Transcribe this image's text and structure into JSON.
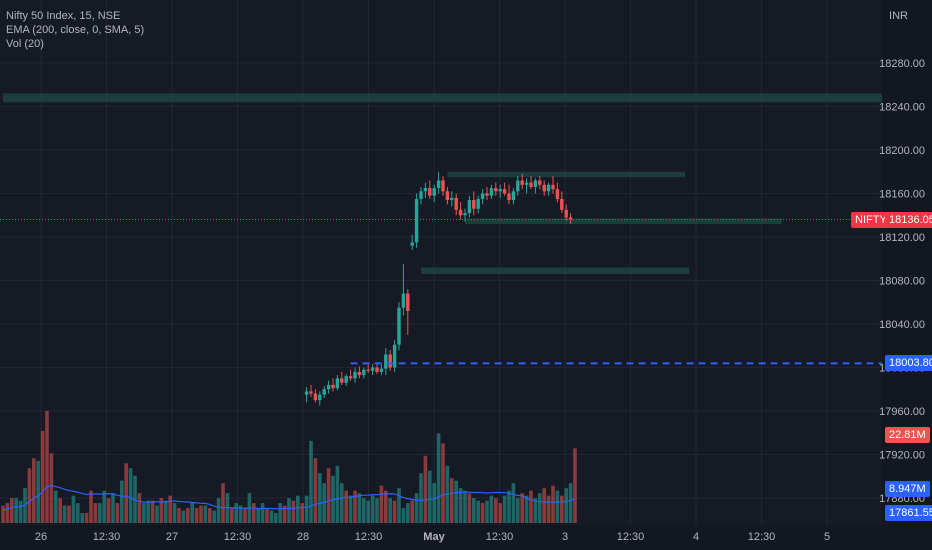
{
  "legend": {
    "line1": "Nifty 50 Index, 15, NSE",
    "line2": "EMA (200, close, 0, SMA, 5)",
    "line3": "Vol (20)"
  },
  "currency": "INR",
  "colors": {
    "background": "#161a25",
    "up": "#26a69a",
    "down": "#ef5350",
    "zone": "#1f4a43",
    "price_line": "#f23645",
    "blue_line": "#2962ff",
    "vol_ma": "#2962ff"
  },
  "tags": {
    "symbol_label": "NIFTY",
    "last_price": "18136.05",
    "level_price": "18003.80",
    "volume_last": "22.81M",
    "volume_ma": "8.947M",
    "bottom_price": "17861.55"
  },
  "chart_data": {
    "type": "candlestick",
    "title": "Nifty 50 Index, 15, NSE",
    "y_axis": {
      "ticks": [
        "18280.00",
        "18240.00",
        "18200.00",
        "18160.00",
        "18120.00",
        "18080.00",
        "18040.00",
        "18000.00",
        "17960.00",
        "17920.00",
        "17880.00"
      ],
      "range": [
        17850,
        18310
      ]
    },
    "x_axis": {
      "ticks": [
        "26",
        "12:30",
        "27",
        "12:30",
        "28",
        "12:30",
        "May",
        "12:30",
        "3",
        "12:30",
        "4",
        "12:30",
        "5"
      ]
    },
    "last_price": 18136.05,
    "horizontal_level": 18003.8,
    "zones": [
      {
        "low": 18244,
        "high": 18252,
        "from_index": 0,
        "to_index": 200
      },
      {
        "low": 18175,
        "high": 18180,
        "from_index": 101,
        "to_index": 155
      },
      {
        "low": 18132,
        "high": 18137,
        "from_index": 105,
        "to_index": 177
      },
      {
        "low": 18086,
        "high": 18092,
        "from_index": 95,
        "to_index": 156
      }
    ],
    "candles_start_index": 69,
    "candles": [
      [
        17975,
        17982,
        17968,
        17978
      ],
      [
        17978,
        17984,
        17973,
        17976
      ],
      [
        17976,
        17980,
        17968,
        17970
      ],
      [
        17970,
        17978,
        17965,
        17975
      ],
      [
        17975,
        17983,
        17972,
        17980
      ],
      [
        17980,
        17988,
        17976,
        17984
      ],
      [
        17984,
        17990,
        17978,
        17981
      ],
      [
        17981,
        17993,
        17979,
        17990
      ],
      [
        17990,
        17996,
        17984,
        17986
      ],
      [
        17986,
        17994,
        17983,
        17992
      ],
      [
        17992,
        17998,
        17988,
        17990
      ],
      [
        17990,
        18000,
        17986,
        17996
      ],
      [
        17996,
        18001,
        17990,
        17993
      ],
      [
        17993,
        18000,
        17990,
        17998
      ],
      [
        17998,
        18004,
        17995,
        17997
      ],
      [
        17997,
        18003,
        17993,
        18000
      ],
      [
        18000,
        18005,
        17994,
        17996
      ],
      [
        17996,
        18003,
        17993,
        17999
      ],
      [
        17999,
        18018,
        17993,
        18012
      ],
      [
        18012,
        18016,
        17997,
        18000
      ],
      [
        18000,
        18025,
        17996,
        18021
      ],
      [
        18021,
        18060,
        18016,
        18055
      ],
      [
        18055,
        18095,
        18048,
        18068
      ],
      [
        18068,
        18072,
        18030,
        18052
      ],
      [
        18112,
        18122,
        18108,
        18115
      ],
      [
        18115,
        18160,
        18110,
        18155
      ],
      [
        18155,
        18166,
        18150,
        18162
      ],
      [
        18162,
        18170,
        18156,
        18165
      ],
      [
        18165,
        18172,
        18155,
        18158
      ],
      [
        18158,
        18168,
        18152,
        18165
      ],
      [
        18165,
        18180,
        18160,
        18172
      ],
      [
        18172,
        18176,
        18158,
        18162
      ],
      [
        18162,
        18166,
        18150,
        18154
      ],
      [
        18154,
        18162,
        18148,
        18156
      ],
      [
        18156,
        18160,
        18140,
        18145
      ],
      [
        18145,
        18152,
        18136,
        18140
      ],
      [
        18140,
        18146,
        18134,
        18142
      ],
      [
        18142,
        18158,
        18138,
        18154
      ],
      [
        18154,
        18162,
        18140,
        18146
      ],
      [
        18146,
        18158,
        18142,
        18155
      ],
      [
        18155,
        18164,
        18150,
        18160
      ],
      [
        18160,
        18166,
        18154,
        18158
      ],
      [
        18158,
        18168,
        18155,
        18165
      ],
      [
        18165,
        18170,
        18158,
        18162
      ],
      [
        18162,
        18168,
        18156,
        18164
      ],
      [
        18164,
        18170,
        18158,
        18160
      ],
      [
        18160,
        18168,
        18150,
        18154
      ],
      [
        18154,
        18165,
        18150,
        18162
      ],
      [
        18162,
        18176,
        18158,
        18172
      ],
      [
        18172,
        18178,
        18164,
        18168
      ],
      [
        18168,
        18174,
        18160,
        18170
      ],
      [
        18170,
        18176,
        18164,
        18166
      ],
      [
        18166,
        18174,
        18160,
        18172
      ],
      [
        18172,
        18176,
        18164,
        18168
      ],
      [
        18168,
        18172,
        18158,
        18162
      ],
      [
        18162,
        18170,
        18158,
        18168
      ],
      [
        18168,
        18176,
        18160,
        18164
      ],
      [
        18164,
        18170,
        18152,
        18155
      ],
      [
        18155,
        18162,
        18142,
        18145
      ],
      [
        18145,
        18150,
        18135,
        18138
      ],
      [
        18138,
        18142,
        18132,
        18136
      ]
    ],
    "volume_max": 45,
    "volume": [
      [
        7,
        0
      ],
      [
        8,
        0
      ],
      [
        10,
        0
      ],
      [
        10,
        1
      ],
      [
        9,
        1
      ],
      [
        14,
        1
      ],
      [
        22,
        0
      ],
      [
        26,
        0
      ],
      [
        25,
        1
      ],
      [
        37,
        0
      ],
      [
        45,
        0
      ],
      [
        28,
        0
      ],
      [
        13,
        1
      ],
      [
        10,
        0
      ],
      [
        7,
        1
      ],
      [
        7,
        0
      ],
      [
        11,
        1
      ],
      [
        8,
        1
      ],
      [
        4,
        1
      ],
      [
        4,
        0
      ],
      [
        13,
        0
      ],
      [
        8,
        0
      ],
      [
        8,
        1
      ],
      [
        13,
        1
      ],
      [
        10,
        0
      ],
      [
        12,
        1
      ],
      [
        8,
        0
      ],
      [
        17,
        1
      ],
      [
        24,
        0
      ],
      [
        22,
        1
      ],
      [
        19,
        1
      ],
      [
        12,
        0
      ],
      [
        8,
        1
      ],
      [
        9,
        1
      ],
      [
        9,
        0
      ],
      [
        7,
        1
      ],
      [
        10,
        0
      ],
      [
        9,
        1
      ],
      [
        11,
        0
      ],
      [
        8,
        1
      ],
      [
        6,
        0
      ],
      [
        5,
        1
      ],
      [
        6,
        0
      ],
      [
        8,
        1
      ],
      [
        6,
        0
      ],
      [
        7,
        0
      ],
      [
        7,
        1
      ],
      [
        6,
        0
      ],
      [
        5,
        1
      ],
      [
        10,
        1
      ],
      [
        16,
        0
      ],
      [
        12,
        1
      ],
      [
        6,
        0
      ],
      [
        8,
        1
      ],
      [
        7,
        1
      ],
      [
        6,
        0
      ],
      [
        12,
        1
      ],
      [
        8,
        0
      ],
      [
        6,
        1
      ],
      [
        8,
        1
      ],
      [
        6,
        0
      ],
      [
        5,
        1
      ],
      [
        4,
        1
      ],
      [
        8,
        1
      ],
      [
        7,
        0
      ],
      [
        10,
        1
      ],
      [
        9,
        0
      ],
      [
        11,
        1
      ],
      [
        8,
        0
      ],
      [
        11,
        1
      ],
      [
        33,
        1
      ],
      [
        26,
        0
      ],
      [
        20,
        1
      ],
      [
        16,
        1
      ],
      [
        22,
        0
      ],
      [
        19,
        1
      ],
      [
        23,
        1
      ],
      [
        16,
        1
      ],
      [
        13,
        0
      ],
      [
        11,
        1
      ],
      [
        13,
        0
      ],
      [
        12,
        1
      ],
      [
        10,
        1
      ],
      [
        9,
        1
      ],
      [
        11,
        1
      ],
      [
        10,
        1
      ],
      [
        15,
        0
      ],
      [
        13,
        0
      ],
      [
        10,
        1
      ],
      [
        9,
        0
      ],
      [
        14,
        1
      ],
      [
        6,
        1
      ],
      [
        8,
        1
      ],
      [
        9,
        0
      ],
      [
        12,
        1
      ],
      [
        20,
        1
      ],
      [
        27,
        0
      ],
      [
        21,
        1
      ],
      [
        16,
        1
      ],
      [
        36,
        1
      ],
      [
        32,
        0
      ],
      [
        23,
        1
      ],
      [
        18,
        0
      ],
      [
        17,
        1
      ],
      [
        14,
        1
      ],
      [
        13,
        1
      ],
      [
        12,
        0
      ],
      [
        10,
        1
      ],
      [
        9,
        1
      ],
      [
        8,
        0
      ],
      [
        9,
        1
      ],
      [
        11,
        1
      ],
      [
        10,
        0
      ],
      [
        8,
        0
      ],
      [
        11,
        1
      ],
      [
        13,
        1
      ],
      [
        16,
        1
      ],
      [
        10,
        1
      ],
      [
        12,
        0
      ],
      [
        11,
        1
      ],
      [
        13,
        0
      ],
      [
        10,
        1
      ],
      [
        12,
        1
      ],
      [
        14,
        0
      ],
      [
        11,
        0
      ],
      [
        15,
        0
      ],
      [
        13,
        1
      ],
      [
        11,
        0
      ],
      [
        14,
        1
      ],
      [
        16,
        1
      ],
      [
        30,
        0
      ]
    ]
  }
}
